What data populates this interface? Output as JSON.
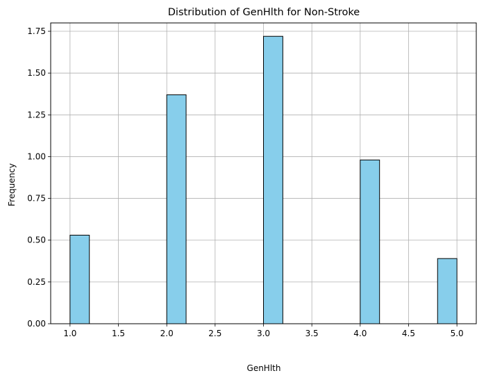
{
  "chart_data": {
    "type": "bar",
    "title": "Distribution of GenHlth for Non-Stroke",
    "xlabel": "GenHlth",
    "ylabel": "Frequency",
    "xlim": [
      0.8,
      5.2
    ],
    "ylim": [
      0,
      1.8
    ],
    "xticks": [
      1.0,
      1.5,
      2.0,
      2.5,
      3.0,
      3.5,
      4.0,
      4.5,
      5.0
    ],
    "xtick_labels": [
      "1.0",
      "1.5",
      "2.0",
      "2.5",
      "3.0",
      "3.5",
      "4.0",
      "4.5",
      "5.0"
    ],
    "yticks": [
      0,
      0.25,
      0.5,
      0.75,
      1.0,
      1.25,
      1.5,
      1.75
    ],
    "ytick_labels": [
      "0.00",
      "0.25",
      "0.50",
      "0.75",
      "1.00",
      "1.25",
      "1.50",
      "1.75"
    ],
    "grid": true,
    "bin_width": 0.2,
    "bins": [
      {
        "x0": 1.0,
        "x1": 1.2,
        "value": 0.53
      },
      {
        "x0": 2.0,
        "x1": 2.2,
        "value": 1.37
      },
      {
        "x0": 3.0,
        "x1": 3.2,
        "value": 1.72
      },
      {
        "x0": 4.0,
        "x1": 4.2,
        "value": 0.98
      },
      {
        "x0": 4.8,
        "x1": 5.0,
        "value": 0.39
      }
    ],
    "bar_color": "#87CEEB",
    "edge_color": "#000000",
    "grid_color": "#b0b0b0"
  }
}
